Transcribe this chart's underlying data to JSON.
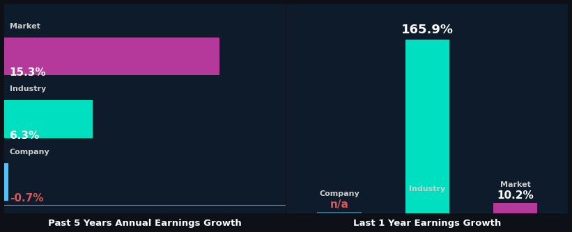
{
  "bg_color": "#0d1117",
  "chart_bg": "#0d1b2a",
  "bar_colors": {
    "company": "#4fc3f7",
    "industry": "#00e0c0",
    "market": "#b5399a"
  },
  "left_chart": {
    "title": "Past 5 Years Annual Earnings Growth",
    "type": "horizontal",
    "bars": [
      {
        "label": "Company",
        "value": -0.7,
        "display": "-0.7%",
        "color_key": "company",
        "value_color": "#e05555"
      },
      {
        "label": "Industry",
        "value": 6.3,
        "display": "6.3%",
        "color_key": "industry",
        "value_color": "#ffffff"
      },
      {
        "label": "Market",
        "value": 15.3,
        "display": "15.3%",
        "color_key": "market",
        "value_color": "#ffffff"
      }
    ],
    "xlim": [
      0,
      20
    ]
  },
  "right_chart": {
    "title": "Last 1 Year Earnings Growth",
    "type": "vertical",
    "bars": [
      {
        "label": "Company",
        "value": 0,
        "display": "n/a",
        "color_key": "company",
        "value_color": "#e05555"
      },
      {
        "label": "Industry",
        "value": 165.9,
        "display": "165.9%",
        "color_key": "industry",
        "value_color": "#ffffff"
      },
      {
        "label": "Market",
        "value": 10.2,
        "display": "10.2%",
        "color_key": "market",
        "value_color": "#ffffff"
      }
    ],
    "ylim": [
      0,
      200
    ]
  },
  "title_fontsize": 9.5,
  "label_fontsize": 8,
  "value_fontsize": 11,
  "big_value_fontsize": 13
}
